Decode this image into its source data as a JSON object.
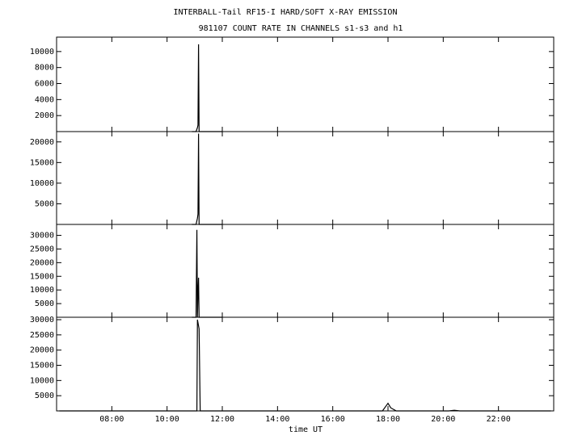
{
  "chart_data": [
    {
      "type": "line",
      "title": "INTERBALL-Tail RF15-I HARD/SOFT X-RAY EMISSION",
      "subtitle": "981107  COUNT RATE IN CHANNELS s1-s3 and h1",
      "x": [
        10.9,
        11.05,
        11.1,
        11.12,
        11.14,
        11.16,
        11.3,
        12
      ],
      "values": [
        0,
        0,
        500,
        800,
        10900,
        0,
        0,
        0
      ],
      "xlim": [
        6,
        24
      ],
      "ylim": [
        0,
        11800
      ],
      "yticks": [
        2000,
        4000,
        6000,
        8000,
        10000
      ],
      "color": "#000000"
    },
    {
      "type": "line",
      "x": [
        10.9,
        11.05,
        11.1,
        11.12,
        11.14,
        11.16,
        11.3,
        12
      ],
      "values": [
        0,
        0,
        1500,
        2500,
        22000,
        0,
        0,
        0
      ],
      "xlim": [
        6,
        24
      ],
      "ylim": [
        0,
        22500
      ],
      "yticks": [
        5000,
        10000,
        15000,
        20000
      ],
      "color": "#000000"
    },
    {
      "type": "line",
      "x": [
        10.9,
        11.05,
        11.08,
        11.1,
        11.12,
        11.14,
        11.16,
        11.3,
        12
      ],
      "values": [
        0,
        0,
        32000,
        0,
        9000,
        14500,
        0,
        0,
        0
      ],
      "xlim": [
        6,
        24
      ],
      "ylim": [
        0,
        34000
      ],
      "yticks": [
        5000,
        10000,
        15000,
        20000,
        25000,
        30000
      ],
      "color": "#000000"
    },
    {
      "type": "line",
      "xlabel": "time UT",
      "x": [
        6.1,
        11.08,
        11.1,
        11.14,
        11.16,
        11.2,
        17.8,
        18.0,
        18.1,
        18.3,
        20.2,
        20.4,
        20.6,
        23.9
      ],
      "values": [
        0,
        0,
        30000,
        28000,
        27000,
        0,
        0,
        2500,
        1000,
        0,
        0,
        200,
        0,
        0
      ],
      "xlim": [
        6,
        24
      ],
      "ylim": [
        0,
        30800
      ],
      "yticks": [
        5000,
        10000,
        15000,
        20000,
        25000,
        30000
      ],
      "xticks": [
        {
          "value": 8,
          "label": "08:00"
        },
        {
          "value": 10,
          "label": "10:00"
        },
        {
          "value": 12,
          "label": "12:00"
        },
        {
          "value": 14,
          "label": "14:00"
        },
        {
          "value": 16,
          "label": "16:00"
        },
        {
          "value": 18,
          "label": "18:00"
        },
        {
          "value": 20,
          "label": "20:00"
        },
        {
          "value": 22,
          "label": "22:00"
        }
      ],
      "color": "#000000"
    }
  ]
}
